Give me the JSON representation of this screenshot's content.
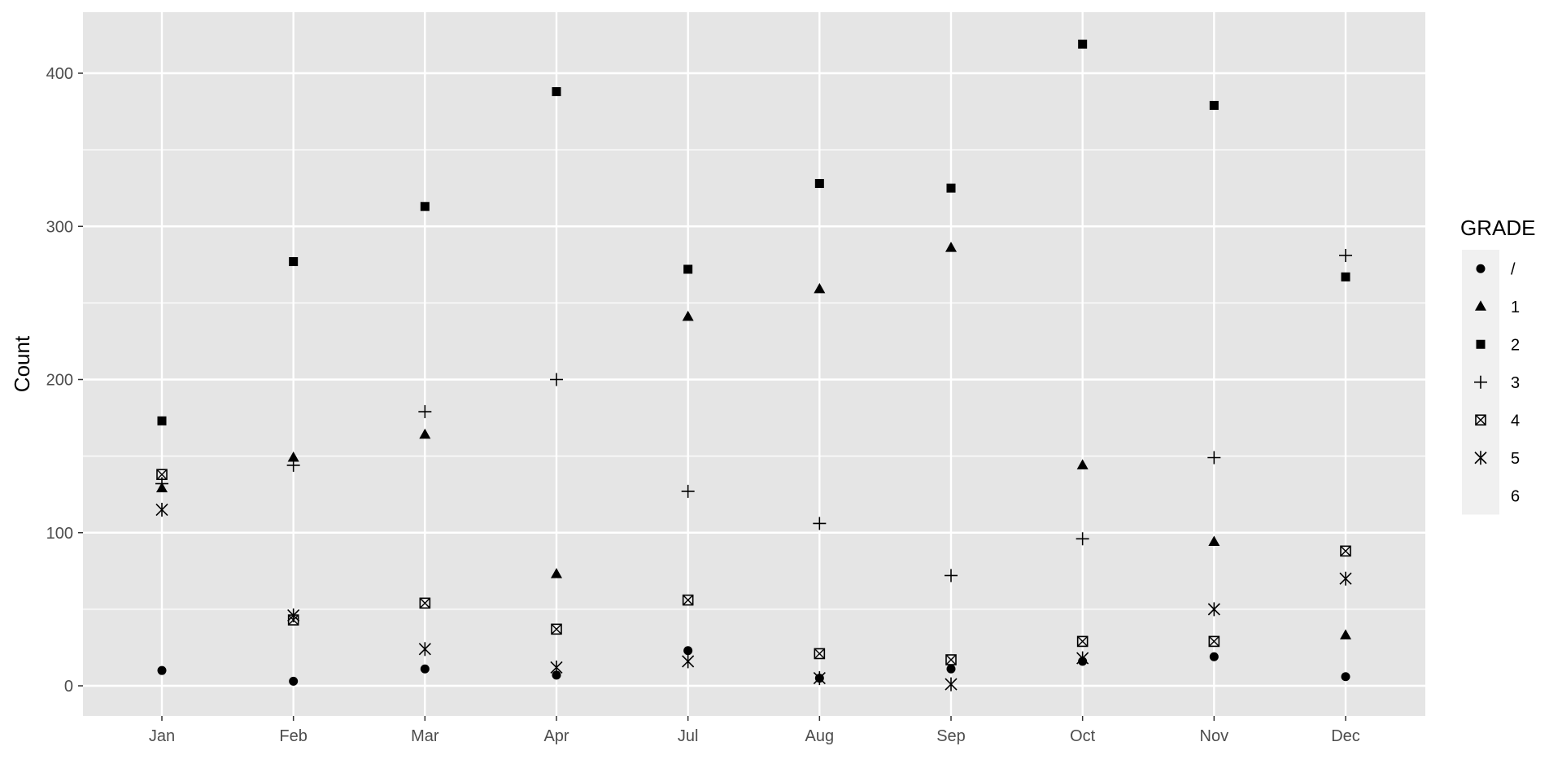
{
  "chart_data": {
    "type": "scatter",
    "title": "",
    "xlabel": "",
    "ylabel": "Count",
    "categories": [
      "Jan",
      "Feb",
      "Mar",
      "Apr",
      "Jul",
      "Aug",
      "Sep",
      "Oct",
      "Nov",
      "Dec"
    ],
    "ylim": [
      -20,
      440
    ],
    "yticks": [
      0,
      100,
      200,
      300,
      400
    ],
    "grid": true,
    "legend": {
      "title": "GRADE",
      "position": "right"
    },
    "series": [
      {
        "name": "/",
        "shape": "circle",
        "values": [
          10,
          3,
          11,
          7,
          23,
          5,
          11,
          16,
          19,
          6
        ]
      },
      {
        "name": "1",
        "shape": "triangle",
        "values": [
          129,
          149,
          164,
          73,
          241,
          259,
          286,
          144,
          94,
          33
        ]
      },
      {
        "name": "2",
        "shape": "square",
        "values": [
          173,
          277,
          313,
          388,
          272,
          328,
          325,
          419,
          379,
          267
        ]
      },
      {
        "name": "3",
        "shape": "plus",
        "values": [
          132,
          144,
          179,
          200,
          127,
          106,
          72,
          96,
          149,
          281
        ]
      },
      {
        "name": "4",
        "shape": "boxed-x",
        "values": [
          138,
          43,
          54,
          37,
          56,
          21,
          17,
          29,
          29,
          88
        ]
      },
      {
        "name": "5",
        "shape": "asterisk",
        "values": [
          115,
          46,
          24,
          12,
          16,
          5,
          1,
          18,
          50,
          70
        ]
      },
      {
        "name": "6",
        "shape": "none",
        "values": []
      }
    ],
    "colors": {
      "panel": "#e5e5e5",
      "grid": "#ffffff",
      "point": "#000000",
      "legend_key": "#f0f0f0"
    }
  }
}
